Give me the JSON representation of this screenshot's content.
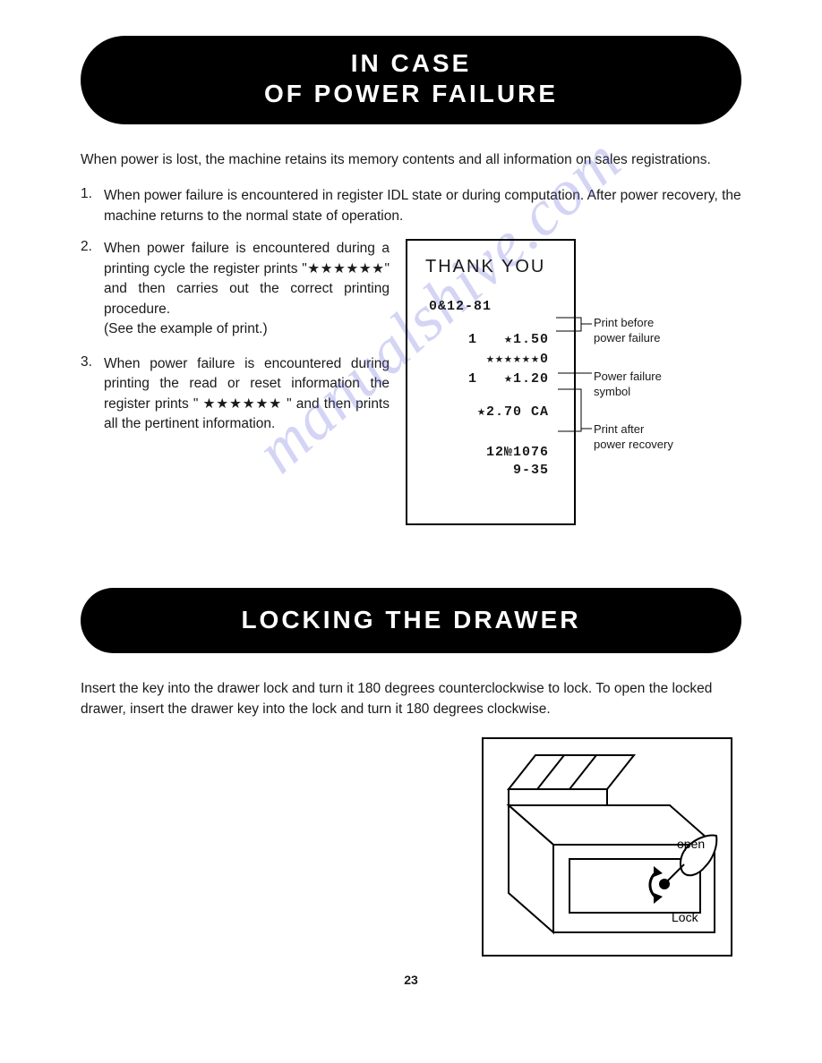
{
  "page_number": "23",
  "watermark_text": "manualshive.com",
  "sections": {
    "power_failure": {
      "title_line1": "IN CASE",
      "title_line2": "OF POWER FAILURE",
      "intro": "When power is lost, the machine retains its memory contents and all information on sales registrations.",
      "items": [
        {
          "n": "1.",
          "text": "When power failure is encountered in register IDL state or during computation. After power recovery, the machine returns to the normal state of operation."
        },
        {
          "n": "2.",
          "text": "When power failure is encountered during a printing cycle the register prints \"★★★★★★\" and then carries out the correct printing procedure.",
          "text2": "(See the example of print.)"
        },
        {
          "n": "3.",
          "text": "When power failure is encountered during printing the read or reset information the register prints \" ★★★★★★ \" and then prints all the pertinent information."
        }
      ],
      "receipt": {
        "title": "THANK YOU",
        "lines": {
          "date": "0&12-81",
          "item1": "1   ★1.50",
          "stars": "★★★★★★0",
          "item2": "1   ★1.20",
          "total": "★2.70 CA",
          "serial": "12№1076",
          "time": "9-35"
        },
        "annotations": {
          "before": "Print before\npower failure",
          "symbol": "Power failure\nsymbol",
          "after": "Print after\npower recovery"
        }
      }
    },
    "locking": {
      "title": "LOCKING THE DRAWER",
      "text": "Insert the key into the drawer lock and turn it 180 degrees counterclockwise to lock. To open the locked drawer, insert the drawer key into the lock and turn it 180 degrees clockwise.",
      "figure_labels": {
        "open": "open",
        "lock": "Lock"
      }
    }
  },
  "styles": {
    "header_bg": "#000000",
    "header_fg": "#ffffff",
    "body_fg": "#1a1a1a",
    "watermark_color": "rgba(100,100,220,0.28)",
    "border_color": "#000000",
    "font_body_size_pt": 12,
    "font_header_size_pt": 21
  }
}
